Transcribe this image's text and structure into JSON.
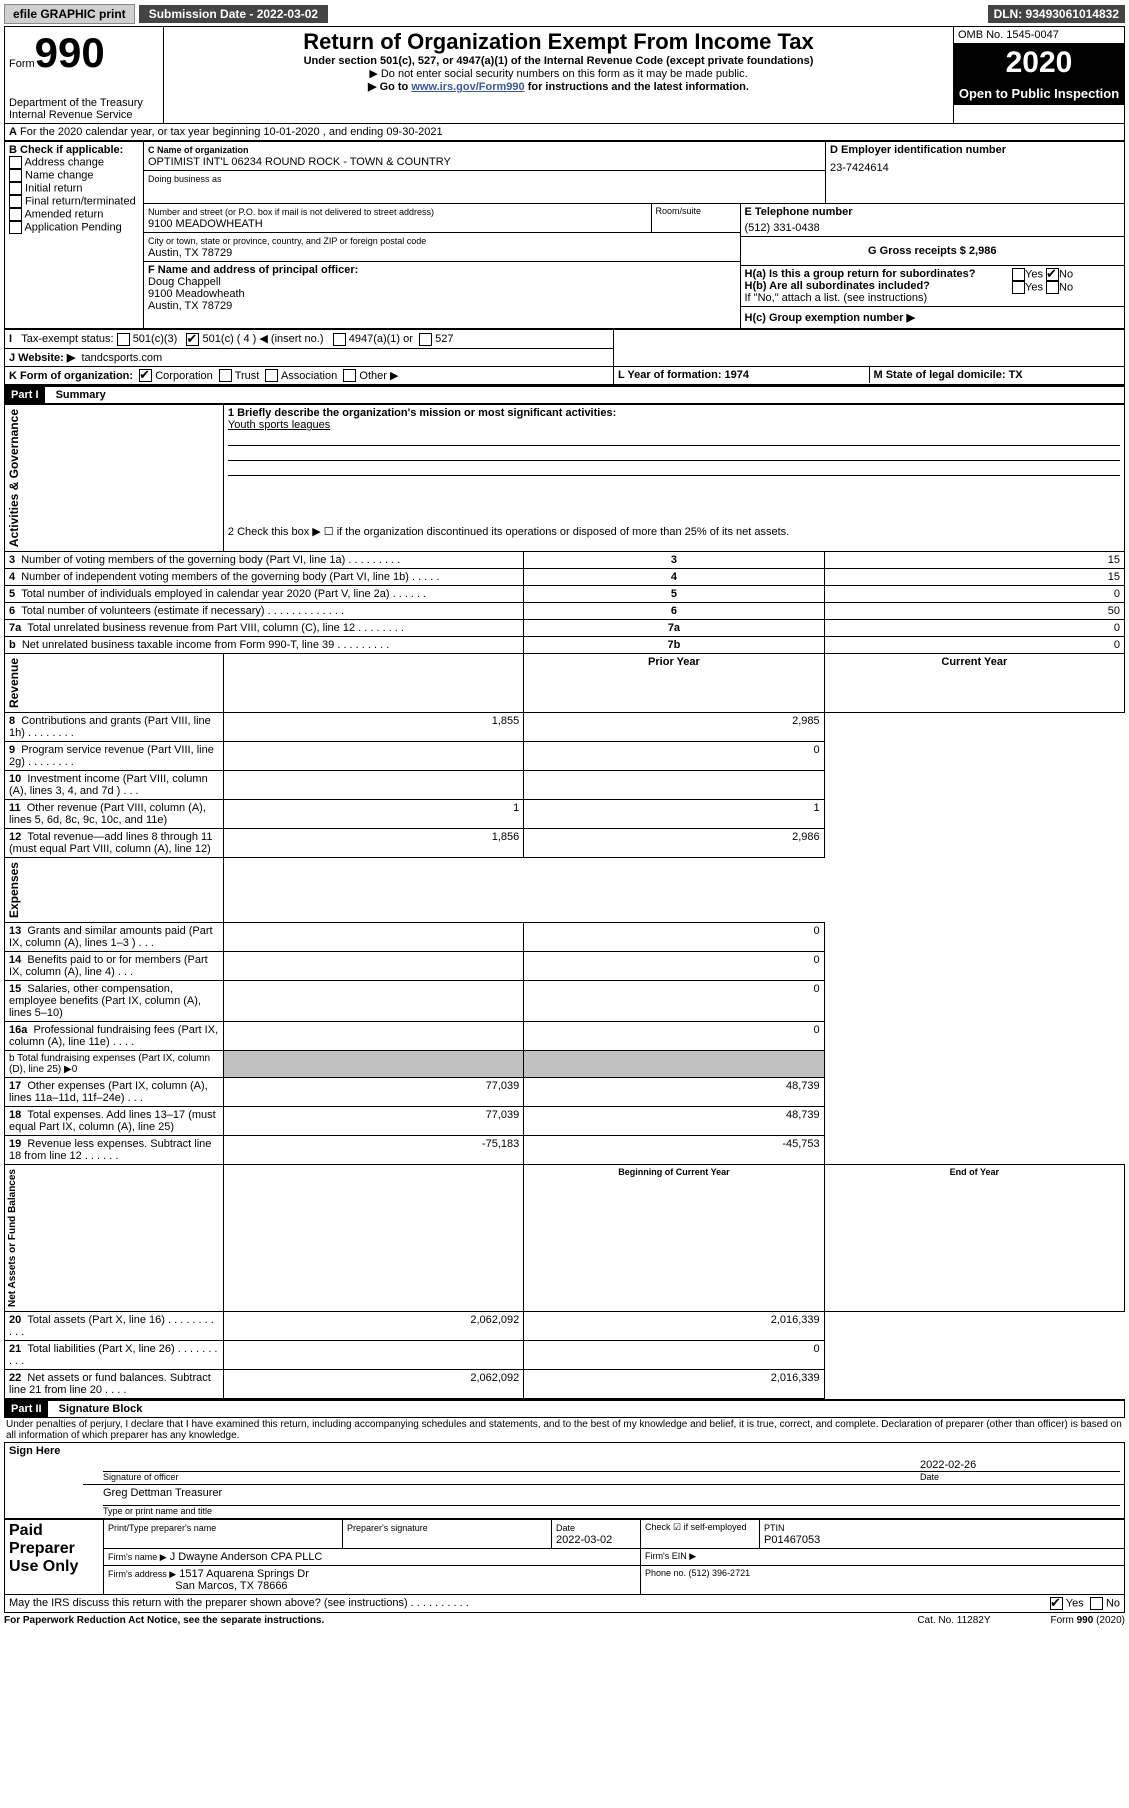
{
  "topbar": {
    "efile": "efile GRAPHIC print",
    "submission_label": "Submission Date - 2022-03-02",
    "dln": "DLN: 93493061014832"
  },
  "header": {
    "form_word": "Form",
    "form_number": "990",
    "dept": "Department of the Treasury",
    "irs": "Internal Revenue Service",
    "title": "Return of Organization Exempt From Income Tax",
    "subtitle": "Under section 501(c), 527, or 4947(a)(1) of the Internal Revenue Code (except private foundations)",
    "instr1": "▶ Do not enter social security numbers on this form as it may be made public.",
    "instr2_pre": "▶ Go to ",
    "instr2_link": "www.irs.gov/Form990",
    "instr2_post": " for instructions and the latest information.",
    "omb": "OMB No. 1545-0047",
    "year": "2020",
    "open": "Open to Public Inspection"
  },
  "line_a": "For the 2020 calendar year, or tax year beginning 10-01-2020   , and ending 09-30-2021",
  "section_b": {
    "label": "B Check if applicable:",
    "items": [
      "Address change",
      "Name change",
      "Initial return",
      "Final return/terminated",
      "Amended return",
      "Application Pending"
    ]
  },
  "section_c": {
    "name_label": "C Name of organization",
    "name": "OPTIMIST INT'L 06234 ROUND ROCK - TOWN & COUNTRY",
    "dba": "Doing business as",
    "street_label": "Number and street (or P.O. box if mail is not delivered to street address)",
    "room_label": "Room/suite",
    "street": "9100 MEADOWHEATH",
    "city_label": "City or town, state or province, country, and ZIP or foreign postal code",
    "city": "Austin, TX  78729"
  },
  "section_d": {
    "label": "D Employer identification number",
    "value": "23-7424614"
  },
  "section_e": {
    "label": "E Telephone number",
    "value": "(512) 331-0438"
  },
  "section_g": {
    "label": "G Gross receipts $ 2,986"
  },
  "section_f": {
    "label": "F Name and address of principal officer:",
    "name": "Doug Chappell",
    "addr1": "9100 Meadowheath",
    "addr2": "Austin, TX  78729"
  },
  "section_h": {
    "ha": "H(a)  Is this a group return for subordinates?",
    "hb": "H(b)  Are all subordinates included?",
    "hb_note": "If \"No,\" attach a list. (see instructions)",
    "hc": "H(c)  Group exemption number ▶",
    "yes": "Yes",
    "no": "No"
  },
  "section_i": {
    "label": "Tax-exempt status:",
    "opt1": "501(c)(3)",
    "opt2": "501(c) ( 4 ) ◀ (insert no.)",
    "opt3": "4947(a)(1) or",
    "opt4": "527"
  },
  "section_j": {
    "label": "J   Website: ▶",
    "value": "tandcsports.com"
  },
  "section_k": {
    "label": "K Form of organization:",
    "corp": "Corporation",
    "trust": "Trust",
    "assoc": "Association",
    "other": "Other ▶"
  },
  "section_l": {
    "label": "L Year of formation: 1974"
  },
  "section_m": {
    "label": "M State of legal domicile: TX"
  },
  "part1": {
    "header": "Part I",
    "title": "Summary",
    "side1": "Activities & Governance",
    "side2": "Revenue",
    "side3": "Expenses",
    "side4": "Net Assets or Fund Balances",
    "line1": "1  Briefly describe the organization's mission or most significant activities:",
    "mission": "Youth sports leagues",
    "line2": "2    Check this box ▶ ☐  if the organization discontinued its operations or disposed of more than 25% of its net assets.",
    "lines": [
      {
        "n": "3",
        "t": "Number of voting members of the governing body (Part VI, line 1a)   .    .    .    .    .    .    .    .    .",
        "b": "3",
        "v": "15"
      },
      {
        "n": "4",
        "t": "Number of independent voting members of the governing body (Part VI, line 1b)   .    .    .    .    .",
        "b": "4",
        "v": "15"
      },
      {
        "n": "5",
        "t": "Total number of individuals employed in calendar year 2020 (Part V, line 2a)   .    .    .    .    .    .",
        "b": "5",
        "v": "0"
      },
      {
        "n": "6",
        "t": "Total number of volunteers (estimate if necessary)   .    .    .    .    .    .    .    .    .    .    .    .    .",
        "b": "6",
        "v": "50"
      },
      {
        "n": "7a",
        "t": "Total unrelated business revenue from Part VIII, column (C), line 12   .    .    .    .    .    .    .    .",
        "b": "7a",
        "v": "0"
      },
      {
        "n": " b",
        "t": "Net unrelated business taxable income from Form 990-T, line 39   .    .    .    .    .    .    .    .    .",
        "b": "7b",
        "v": "0"
      }
    ],
    "prior_year": "Prior Year",
    "current_year": "Current Year",
    "rev_lines": [
      {
        "n": "8",
        "t": "Contributions and grants (Part VIII, line 1h)   .    .    .    .    .    .    .    .",
        "p": "1,855",
        "c": "2,985"
      },
      {
        "n": "9",
        "t": "Program service revenue (Part VIII, line 2g)   .    .    .    .    .    .    .    .",
        "p": "",
        "c": "0"
      },
      {
        "n": "10",
        "t": "Investment income (Part VIII, column (A), lines 3, 4, and 7d )   .    .    .",
        "p": "",
        "c": ""
      },
      {
        "n": "11",
        "t": "Other revenue (Part VIII, column (A), lines 5, 6d, 8c, 9c, 10c, and 11e)",
        "p": "1",
        "c": "1"
      },
      {
        "n": "12",
        "t": "Total revenue—add lines 8 through 11 (must equal Part VIII, column (A), line 12)",
        "p": "1,856",
        "c": "2,986"
      }
    ],
    "exp_lines": [
      {
        "n": "13",
        "t": "Grants and similar amounts paid (Part IX, column (A), lines 1–3 )   .    .    .",
        "p": "",
        "c": "0"
      },
      {
        "n": "14",
        "t": "Benefits paid to or for members (Part IX, column (A), line 4)   .    .    .",
        "p": "",
        "c": "0"
      },
      {
        "n": "15",
        "t": "Salaries, other compensation, employee benefits (Part IX, column (A), lines 5–10)",
        "p": "",
        "c": "0"
      },
      {
        "n": "16a",
        "t": "Professional fundraising fees (Part IX, column (A), line 11e)   .    .    .    .",
        "p": "",
        "c": "0"
      }
    ],
    "line16b": "  b  Total fundraising expenses (Part IX, column (D), line 25) ▶0",
    "exp_lines2": [
      {
        "n": "17",
        "t": "Other expenses (Part IX, column (A), lines 11a–11d, 11f–24e)   .    .    .",
        "p": "77,039",
        "c": "48,739"
      },
      {
        "n": "18",
        "t": "Total expenses. Add lines 13–17 (must equal Part IX, column (A), line 25)",
        "p": "77,039",
        "c": "48,739"
      },
      {
        "n": "19",
        "t": "Revenue less expenses. Subtract line 18 from line 12   .    .    .    .    .    .",
        "p": "-75,183",
        "c": "-45,753"
      }
    ],
    "beg_year": "Beginning of Current Year",
    "end_year": "End of Year",
    "net_lines": [
      {
        "n": "20",
        "t": "Total assets (Part X, line 16)   .    .    .    .    .    .    .    .    .    .    .",
        "p": "2,062,092",
        "c": "2,016,339"
      },
      {
        "n": "21",
        "t": "Total liabilities (Part X, line 26)   .    .    .    .    .    .    .    .    .    .",
        "p": "",
        "c": "0"
      },
      {
        "n": "22",
        "t": "Net assets or fund balances. Subtract line 21 from line 20   .    .    .    .",
        "p": "2,062,092",
        "c": "2,016,339"
      }
    ]
  },
  "part2": {
    "header": "Part II",
    "title": "Signature Block",
    "perjury": "Under penalties of perjury, I declare that I have examined this return, including accompanying schedules and statements, and to the best of my knowledge and belief, it is true, correct, and complete. Declaration of preparer (other than officer) is based on all information of which preparer has any knowledge.",
    "sign_here": "Sign Here",
    "sig_officer": "Signature of officer",
    "sig_date": "2022-02-26",
    "date_label": "Date",
    "name_title": "Greg Dettman  Treasurer",
    "type_label": "Type or print name and title",
    "paid_prep": "Paid Preparer Use Only",
    "prep_name_label": "Print/Type preparer's name",
    "prep_sig_label": "Preparer's signature",
    "prep_date_label": "Date",
    "prep_date": "2022-03-02",
    "check_if": "Check ☑ if self-employed",
    "ptin_label": "PTIN",
    "ptin": "P01467053",
    "firm_name_label": "Firm's name    ▶",
    "firm_name": "J Dwayne Anderson CPA PLLC",
    "firm_ein_label": "Firm's EIN ▶",
    "firm_addr_label": "Firm's address ▶",
    "firm_addr1": "1517 Aquarena Springs Dr",
    "firm_addr2": "San Marcos, TX  78666",
    "phone_label": "Phone no. (512) 396-2721",
    "discuss": "May the IRS discuss this return with the preparer shown above? (see instructions)   .    .    .    .    .    .    .    .    .    .",
    "yes": "Yes",
    "no": "No"
  },
  "footer": {
    "paperwork": "For Paperwork Reduction Act Notice, see the separate instructions.",
    "cat": "Cat. No. 11282Y",
    "form": "Form 990 (2020)"
  }
}
